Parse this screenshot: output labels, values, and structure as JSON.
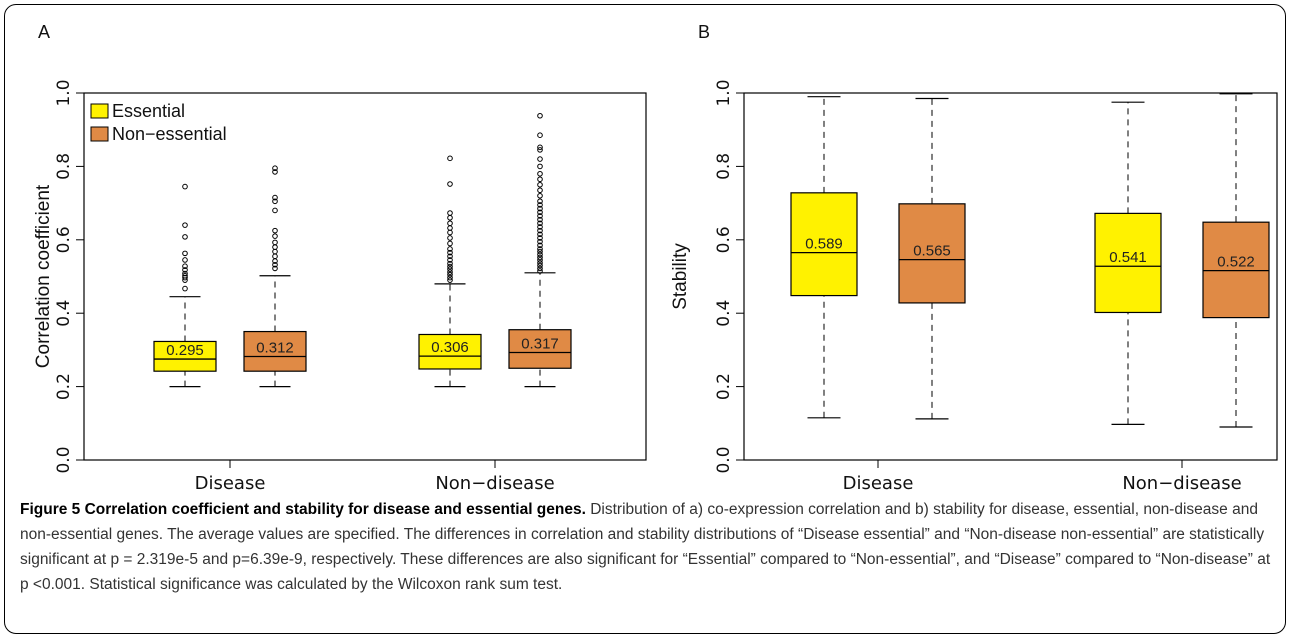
{
  "figure": {
    "caption_title": "Figure 5 Correlation coefficient and stability for disease and essential genes.",
    "caption_text": " Distribution of a) co-expression correlation and b) stability for disease, essential, non-disease and non-essential genes. The average values are specified. The differences in correlation and stability distributions of “Disease essential” and “Non-disease non-essential” are statistically significant at p = 2.319e-5 and p=6.39e-9, respectively. These differences are also significant for “Essential” compared to “Non-essential”, and “Disease” compared to “Non-disease” at p <0.001. Statistical significance was calculated by the Wilcoxon rank sum test."
  },
  "colors": {
    "essential": "#fff200",
    "non_essential": "#e08a45"
  },
  "chart_data": [
    {
      "panel": "A",
      "type": "boxplot",
      "ylabel": "Correlation coefficient",
      "ylim": [
        0.0,
        1.0
      ],
      "yticks": [
        "0.0",
        "0.2",
        "0.4",
        "0.6",
        "0.8",
        "1.0"
      ],
      "categories": [
        "Disease",
        "Non−disease"
      ],
      "legend": {
        "position": "top-left",
        "entries": [
          "Essential",
          "Non−essential"
        ]
      },
      "boxes": [
        {
          "category": "Disease",
          "series": "Essential",
          "whisker_low": 0.2,
          "q1": 0.242,
          "median": 0.275,
          "q3": 0.323,
          "whisker_high": 0.445,
          "mean_label": "0.295",
          "outliers": [
            0.467,
            0.49,
            0.497,
            0.502,
            0.508,
            0.518,
            0.528,
            0.545,
            0.563,
            0.608,
            0.64,
            0.745
          ]
        },
        {
          "category": "Disease",
          "series": "Non−essential",
          "whisker_low": 0.2,
          "q1": 0.242,
          "median": 0.282,
          "q3": 0.35,
          "whisker_high": 0.502,
          "mean_label": "0.312",
          "outliers": [
            0.522,
            0.532,
            0.542,
            0.555,
            0.568,
            0.58,
            0.593,
            0.61,
            0.625,
            0.68,
            0.705,
            0.715,
            0.785,
            0.795
          ]
        },
        {
          "category": "Non−disease",
          "series": "Essential",
          "whisker_low": 0.2,
          "q1": 0.248,
          "median": 0.283,
          "q3": 0.342,
          "whisker_high": 0.48,
          "mean_label": "0.306",
          "outliers": [
            0.49,
            0.497,
            0.505,
            0.512,
            0.52,
            0.527,
            0.535,
            0.545,
            0.555,
            0.565,
            0.575,
            0.59,
            0.605,
            0.62,
            0.632,
            0.645,
            0.66,
            0.673,
            0.752,
            0.822
          ]
        },
        {
          "category": "Non−disease",
          "series": "Non−essential",
          "whisker_low": 0.2,
          "q1": 0.25,
          "median": 0.293,
          "q3": 0.355,
          "whisker_high": 0.51,
          "mean_label": "0.317",
          "outliers": [
            0.515,
            0.522,
            0.53,
            0.537,
            0.545,
            0.552,
            0.56,
            0.568,
            0.575,
            0.585,
            0.595,
            0.605,
            0.615,
            0.625,
            0.635,
            0.645,
            0.655,
            0.665,
            0.675,
            0.685,
            0.695,
            0.705,
            0.72,
            0.735,
            0.75,
            0.765,
            0.78,
            0.8,
            0.82,
            0.845,
            0.852,
            0.885,
            0.938
          ]
        }
      ]
    },
    {
      "panel": "B",
      "type": "boxplot",
      "ylabel": "Stability",
      "ylim": [
        0.0,
        1.0
      ],
      "yticks": [
        "0.0",
        "0.2",
        "0.4",
        "0.6",
        "0.8",
        "1.0"
      ],
      "categories": [
        "Disease",
        "Non−disease"
      ],
      "boxes": [
        {
          "category": "Disease",
          "series": "Essential",
          "whisker_low": 0.115,
          "q1": 0.448,
          "median": 0.565,
          "q3": 0.728,
          "whisker_high": 0.99,
          "mean_label": "0.589",
          "outliers": []
        },
        {
          "category": "Disease",
          "series": "Non−essential",
          "whisker_low": 0.112,
          "q1": 0.428,
          "median": 0.546,
          "q3": 0.698,
          "whisker_high": 0.985,
          "mean_label": "0.565",
          "outliers": []
        },
        {
          "category": "Non−disease",
          "series": "Essential",
          "whisker_low": 0.097,
          "q1": 0.402,
          "median": 0.528,
          "q3": 0.672,
          "whisker_high": 0.975,
          "mean_label": "0.541",
          "outliers": []
        },
        {
          "category": "Non−disease",
          "series": "Non−essential",
          "whisker_low": 0.09,
          "q1": 0.388,
          "median": 0.516,
          "q3": 0.648,
          "whisker_high": 0.998,
          "mean_label": "0.522",
          "outliers": []
        }
      ]
    }
  ]
}
